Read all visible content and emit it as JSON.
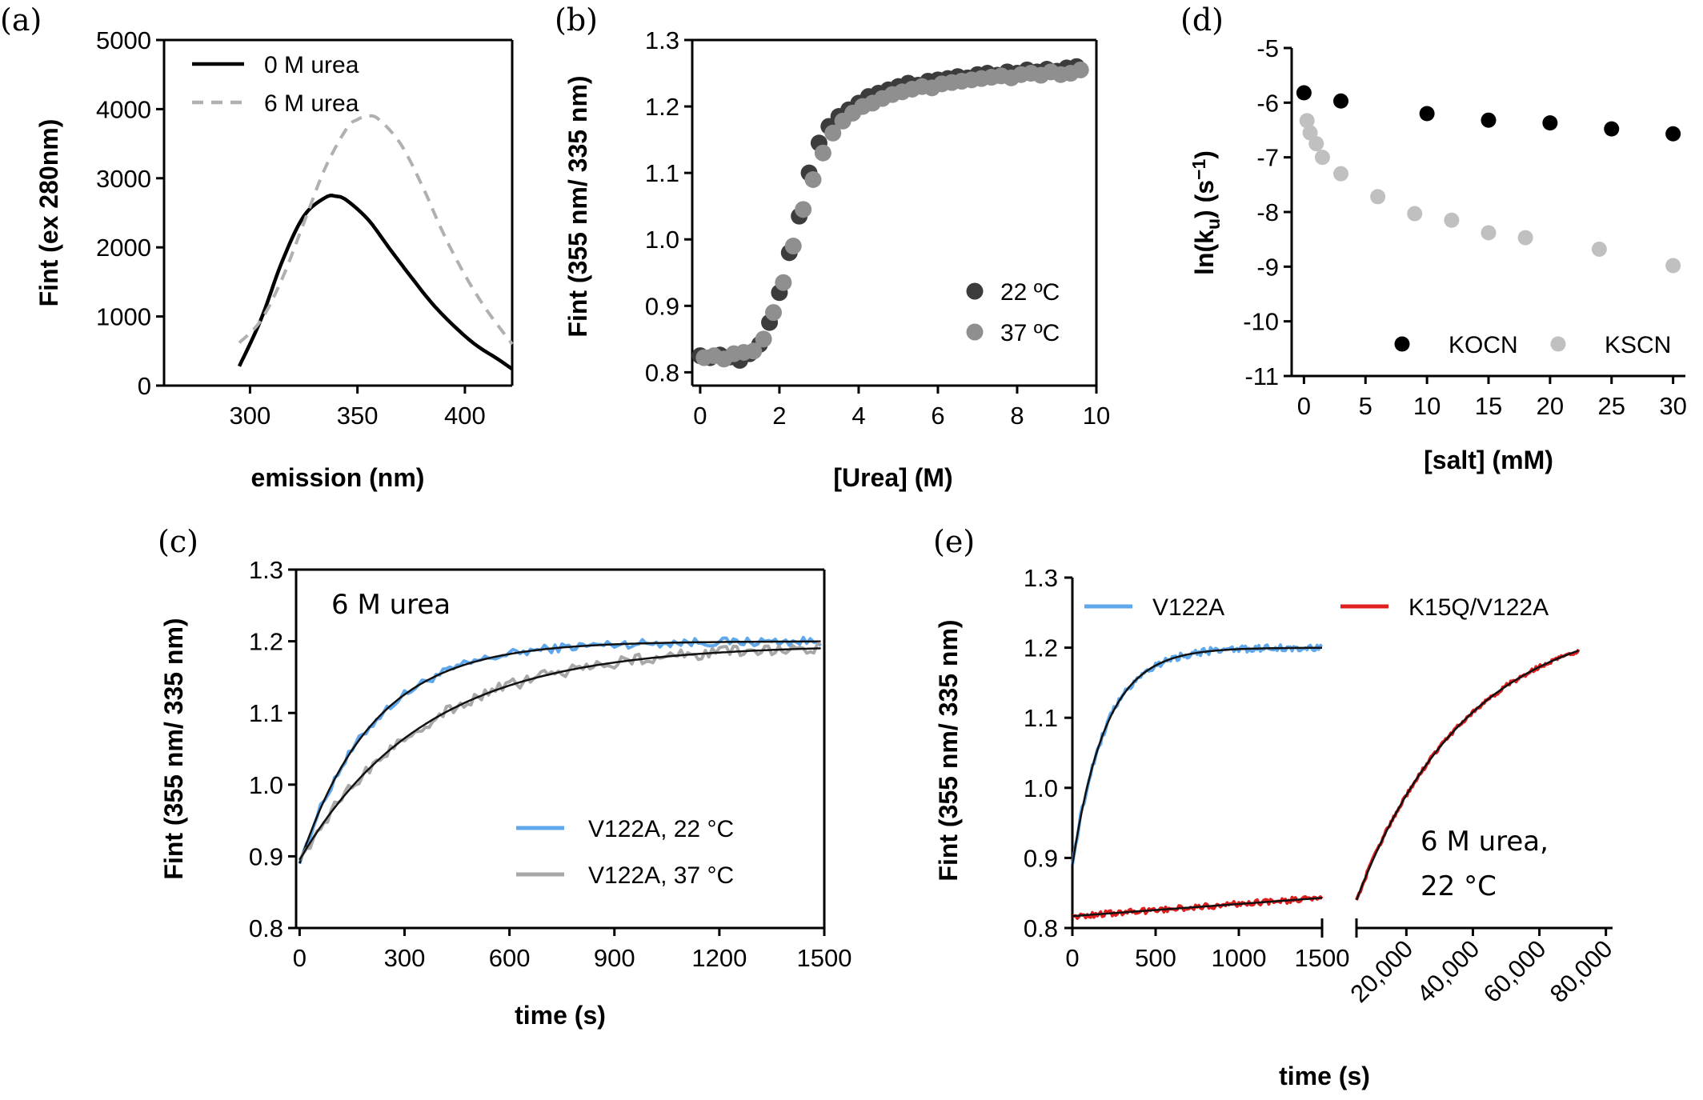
{
  "figure": {
    "panels": [
      "(a)",
      "(b)",
      "(d)",
      "(c)",
      "(e)"
    ]
  },
  "chart_data": [
    {
      "panel": "(a)",
      "type": "line",
      "xlabel": "emission (nm)",
      "ylabel": "Fint (ex 280nm)",
      "xlim": [
        260,
        422
      ],
      "ylim": [
        0,
        5000
      ],
      "xticks": [
        300,
        350,
        400
      ],
      "yticks": [
        0,
        1000,
        2000,
        3000,
        4000,
        5000
      ],
      "grid": false,
      "legend_position": "top-left",
      "series": [
        {
          "name": "0 M urea",
          "color": "#000000",
          "style": "solid",
          "x": [
            295,
            305,
            315,
            325,
            335,
            340,
            345,
            355,
            365,
            375,
            385,
            395,
            405,
            415,
            422
          ],
          "y": [
            280,
            950,
            1800,
            2450,
            2720,
            2740,
            2680,
            2400,
            1980,
            1570,
            1180,
            860,
            590,
            390,
            240
          ]
        },
        {
          "name": "6 M urea",
          "color": "#b0b0b0",
          "style": "dashed",
          "x": [
            295,
            305,
            315,
            325,
            335,
            345,
            350,
            355,
            360,
            370,
            380,
            390,
            400,
            410,
            422
          ],
          "y": [
            620,
            940,
            1550,
            2350,
            3150,
            3720,
            3850,
            3900,
            3850,
            3500,
            2900,
            2200,
            1600,
            1100,
            600
          ]
        }
      ]
    },
    {
      "panel": "(b)",
      "type": "scatter",
      "xlabel": "[Urea] (M)",
      "ylabel": "Fint (355 nm/ 335 nm)",
      "xlim": [
        -0.2,
        10
      ],
      "ylim": [
        0.78,
        1.3
      ],
      "xticks": [
        0,
        2,
        4,
        6,
        8,
        10
      ],
      "yticks": [
        0.8,
        0.9,
        1.0,
        1.1,
        1.2,
        1.3
      ],
      "grid": false,
      "legend_position": "bottom-right",
      "series": [
        {
          "name": "22 ºC",
          "color": "#3c3c3c",
          "x": [
            0,
            0.25,
            0.5,
            0.75,
            1.0,
            1.25,
            1.5,
            1.75,
            2.0,
            2.25,
            2.5,
            2.75,
            3.0,
            3.25,
            3.5,
            3.75,
            4.0,
            4.25,
            4.5,
            4.75,
            5.0,
            5.25,
            5.5,
            5.75,
            6.0,
            6.25,
            6.5,
            6.75,
            7.0,
            7.25,
            7.5,
            7.75,
            8.0,
            8.25,
            8.5,
            8.75,
            9.0,
            9.25,
            9.5
          ],
          "y": [
            0.825,
            0.822,
            0.826,
            0.823,
            0.818,
            0.828,
            0.842,
            0.875,
            0.92,
            0.98,
            1.035,
            1.1,
            1.145,
            1.17,
            1.185,
            1.195,
            1.205,
            1.215,
            1.22,
            1.225,
            1.23,
            1.235,
            1.232,
            1.238,
            1.24,
            1.242,
            1.245,
            1.243,
            1.248,
            1.25,
            1.247,
            1.252,
            1.25,
            1.255,
            1.252,
            1.256,
            1.253,
            1.258,
            1.26
          ]
        },
        {
          "name": "37 ºC",
          "color": "#8f8f8f",
          "x": [
            0.1,
            0.35,
            0.6,
            0.85,
            1.1,
            1.35,
            1.6,
            1.85,
            2.1,
            2.35,
            2.6,
            2.85,
            3.1,
            3.35,
            3.6,
            3.85,
            4.1,
            4.35,
            4.6,
            4.85,
            5.1,
            5.35,
            5.6,
            5.85,
            6.1,
            6.35,
            6.6,
            6.85,
            7.1,
            7.35,
            7.6,
            7.85,
            8.1,
            8.35,
            8.6,
            8.85,
            9.1,
            9.35,
            9.6
          ],
          "y": [
            0.822,
            0.825,
            0.82,
            0.828,
            0.83,
            0.832,
            0.85,
            0.89,
            0.935,
            0.99,
            1.045,
            1.09,
            1.13,
            1.16,
            1.178,
            1.19,
            1.2,
            1.205,
            1.212,
            1.218,
            1.222,
            1.226,
            1.23,
            1.228,
            1.234,
            1.236,
            1.238,
            1.24,
            1.242,
            1.244,
            1.246,
            1.243,
            1.248,
            1.25,
            1.247,
            1.252,
            1.248,
            1.25,
            1.255
          ]
        }
      ]
    },
    {
      "panel": "(d)",
      "type": "scatter",
      "xlabel": "[salt] (mM)",
      "ylabel": "ln(k_u) (s^-1)",
      "xlim": [
        -1,
        31
      ],
      "ylim": [
        -11,
        -5
      ],
      "xticks": [
        0,
        5,
        10,
        15,
        20,
        25,
        30
      ],
      "yticks": [
        -11,
        -10,
        -9,
        -8,
        -7,
        -6,
        -5
      ],
      "grid": false,
      "legend_position": "bottom",
      "series": [
        {
          "name": "KOCN",
          "color": "#000000",
          "x": [
            0,
            3,
            10,
            15,
            20,
            25,
            30
          ],
          "y": [
            -5.82,
            -5.97,
            -6.2,
            -6.32,
            -6.37,
            -6.48,
            -6.57
          ]
        },
        {
          "name": "KSCN",
          "color": "#c0c0c0",
          "x": [
            0.25,
            0.5,
            1,
            1.5,
            3,
            6,
            9,
            12,
            15,
            18,
            24,
            30
          ],
          "y": [
            -6.33,
            -6.55,
            -6.75,
            -7.0,
            -7.3,
            -7.72,
            -8.03,
            -8.15,
            -8.38,
            -8.47,
            -8.68,
            -8.98
          ]
        }
      ]
    },
    {
      "panel": "(c)",
      "type": "line",
      "xlabel": "time (s)",
      "ylabel": "Fint (355 nm/ 335 nm)",
      "xlim": [
        -10,
        1500
      ],
      "ylim": [
        0.8,
        1.3
      ],
      "xticks": [
        0,
        300,
        600,
        900,
        1200,
        1500
      ],
      "yticks": [
        0.8,
        0.9,
        1.0,
        1.1,
        1.2,
        1.3
      ],
      "grid": false,
      "legend_position": "bottom-right",
      "annotation": "6 M urea",
      "series": [
        {
          "name": "V122A, 22 °C",
          "color": "#5fa8ec",
          "model": {
            "y0": 0.89,
            "a": 0.31,
            "tau": 210
          },
          "x_range": [
            0,
            1490
          ],
          "noise": 0.006
        },
        {
          "name": "V122A, 37 °C",
          "color": "#a8a8a8",
          "model": {
            "y0": 0.895,
            "a": 0.3,
            "tau": 360
          },
          "x_range": [
            0,
            1490
          ],
          "noise": 0.008
        }
      ]
    },
    {
      "panel": "(e)",
      "type": "line",
      "xlabel": "time (s)",
      "ylabel": "Fint (355 nm/ 335 nm)",
      "ylim": [
        0.8,
        1.3
      ],
      "yticks": [
        0.8,
        0.9,
        1.0,
        1.1,
        1.2,
        1.3
      ],
      "grid": false,
      "legend_position": "top",
      "annotation": [
        "6 M urea,",
        "22 °C"
      ],
      "segments": [
        {
          "xlim": [
            0,
            1500
          ],
          "xticks": [
            0,
            500,
            1000,
            1500
          ],
          "xtick_labels": [
            "0",
            "500",
            "1000",
            "1500"
          ]
        },
        {
          "xlim": [
            5000,
            82000
          ],
          "xticks": [
            20000,
            40000,
            60000,
            80000
          ],
          "xtick_labels": [
            "20,000",
            "40,000",
            "60,000",
            "80,000"
          ]
        }
      ],
      "series": [
        {
          "name": "V122A",
          "color": "#5fa8ec",
          "segment": 0,
          "model": {
            "y0": 0.89,
            "a": 0.31,
            "tau": 200
          },
          "x_range": [
            0,
            1500
          ],
          "noise": 0.005
        },
        {
          "name": "K15Q/V122A",
          "color": "#e02020",
          "segment": 0,
          "model_linear": {
            "y0": 0.817,
            "slope": 1.73e-05
          },
          "x_range": [
            0,
            1500
          ],
          "noise": 0.004
        },
        {
          "name": "K15Q/V122A",
          "color": "#e02020",
          "segment": 1,
          "model": {
            "y0": 0.84,
            "a": 0.41,
            "tau": 33000,
            "t0": 5000
          },
          "x_range": [
            5000,
            72000
          ],
          "noise": 0.003
        }
      ]
    }
  ]
}
